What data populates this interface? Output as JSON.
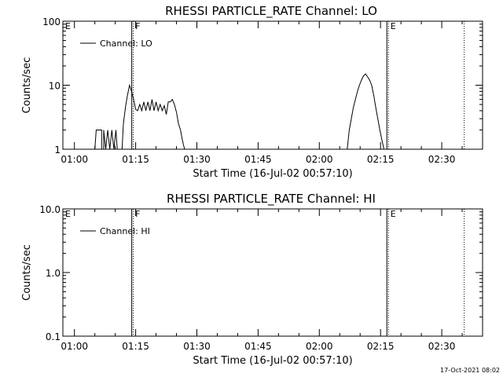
{
  "chart_data": [
    {
      "type": "line",
      "title": "RHESSI PARTICLE_RATE Channel: LO",
      "xlabel": "Start Time (16-Jul-02 00:57:10)",
      "ylabel": "Counts/sec",
      "x_ticks": [
        "01:00",
        "01:15",
        "01:30",
        "01:45",
        "02:00",
        "02:15",
        "02:30"
      ],
      "y_ticks": [
        "1",
        "10",
        "100"
      ],
      "yscale": "log",
      "ylim": [
        1,
        100
      ],
      "xlim": [
        "00:57:10",
        "02:40:00"
      ],
      "legend": {
        "label": "Channel: LO",
        "placement": "top-left"
      },
      "markers": [
        {
          "label": "E",
          "time": "00:57:10",
          "style": "dotted"
        },
        {
          "label": "F",
          "time": "01:14:20",
          "style": "solid+dotted"
        },
        {
          "label": "E",
          "time": "02:16:50",
          "style": "solid+dotted"
        },
        {
          "label": "",
          "time": "02:35:30",
          "style": "dotted"
        }
      ],
      "series": [
        {
          "name": "Channel: LO",
          "segments": [
            [
              [
                "01:05:00",
                1.0
              ],
              [
                "01:05:20",
                2.0
              ],
              [
                "01:06:40",
                2.0
              ],
              [
                "01:06:40",
                1.0
              ],
              [
                "01:07:10",
                1.0
              ],
              [
                "01:07:10",
                2.0
              ],
              [
                "01:07:40",
                1.0
              ],
              [
                "01:08:10",
                2.0
              ],
              [
                "01:08:40",
                1.0
              ],
              [
                "01:09:10",
                2.0
              ],
              [
                "01:09:40",
                1.0
              ],
              [
                "01:10:10",
                2.0
              ],
              [
                "01:10:30",
                1.0
              ]
            ],
            [
              [
                "01:11:40",
                1.0
              ],
              [
                "01:12:00",
                2.5
              ],
              [
                "01:12:30",
                4.5
              ],
              [
                "01:13:00",
                7.0
              ],
              [
                "01:13:30",
                10.0
              ],
              [
                "01:14:00",
                8.0
              ],
              [
                "01:14:30",
                6.0
              ],
              [
                "01:15:00",
                4.2
              ],
              [
                "01:15:30",
                4.0
              ],
              [
                "01:16:00",
                5.0
              ],
              [
                "01:16:30",
                4.0
              ],
              [
                "01:17:00",
                5.5
              ],
              [
                "01:17:30",
                4.0
              ],
              [
                "01:18:00",
                5.5
              ],
              [
                "01:18:30",
                4.0
              ],
              [
                "01:19:00",
                6.0
              ],
              [
                "01:19:30",
                4.0
              ],
              [
                "01:20:00",
                5.5
              ],
              [
                "01:20:30",
                4.0
              ],
              [
                "01:21:00",
                5.0
              ],
              [
                "01:21:30",
                4.0
              ],
              [
                "01:22:00",
                4.8
              ],
              [
                "01:22:30",
                3.5
              ],
              [
                "01:23:00",
                5.5
              ],
              [
                "01:23:30",
                5.5
              ],
              [
                "01:24:00",
                6.0
              ],
              [
                "01:24:30",
                5.0
              ],
              [
                "01:25:00",
                3.8
              ],
              [
                "01:25:30",
                2.5
              ],
              [
                "01:26:00",
                2.0
              ],
              [
                "01:26:20",
                1.5
              ],
              [
                "01:26:40",
                1.2
              ],
              [
                "01:27:00",
                1.0
              ]
            ],
            [
              [
                "02:06:50",
                1.0
              ],
              [
                "02:07:20",
                2.0
              ],
              [
                "02:07:50",
                3.0
              ],
              [
                "02:08:20",
                4.5
              ],
              [
                "02:08:50",
                6.0
              ],
              [
                "02:09:20",
                8.0
              ],
              [
                "02:09:50",
                10.0
              ],
              [
                "02:10:20",
                12.0
              ],
              [
                "02:10:50",
                14.0
              ],
              [
                "02:11:20",
                15.0
              ],
              [
                "02:11:50",
                13.5
              ],
              [
                "02:12:20",
                12.0
              ],
              [
                "02:12:50",
                10.0
              ],
              [
                "02:13:20",
                7.0
              ],
              [
                "02:13:50",
                4.5
              ],
              [
                "02:14:20",
                3.0
              ],
              [
                "02:14:50",
                2.0
              ],
              [
                "02:15:20",
                1.4
              ],
              [
                "02:15:50",
                1.0
              ]
            ]
          ]
        }
      ]
    },
    {
      "type": "line",
      "title": "RHESSI PARTICLE_RATE Channel: HI",
      "xlabel": "Start Time (16-Jul-02 00:57:10)",
      "ylabel": "Counts/sec",
      "x_ticks": [
        "01:00",
        "01:15",
        "01:30",
        "01:45",
        "02:00",
        "02:15",
        "02:30"
      ],
      "y_ticks": [
        "0.1",
        "1.0",
        "10.0"
      ],
      "yscale": "log",
      "ylim": [
        0.1,
        10
      ],
      "xlim": [
        "00:57:10",
        "02:40:00"
      ],
      "legend": {
        "label": "Channel: HI",
        "placement": "top-left"
      },
      "markers": [
        {
          "label": "E",
          "time": "00:57:10",
          "style": "dotted"
        },
        {
          "label": "F",
          "time": "01:14:20",
          "style": "solid+dotted"
        },
        {
          "label": "E",
          "time": "02:16:50",
          "style": "solid+dotted"
        },
        {
          "label": "",
          "time": "02:35:30",
          "style": "dotted"
        }
      ],
      "series": [
        {
          "name": "Channel: HI",
          "segments": []
        }
      ]
    }
  ],
  "footer": {
    "timestamp": "17-Oct-2021 08:02"
  }
}
